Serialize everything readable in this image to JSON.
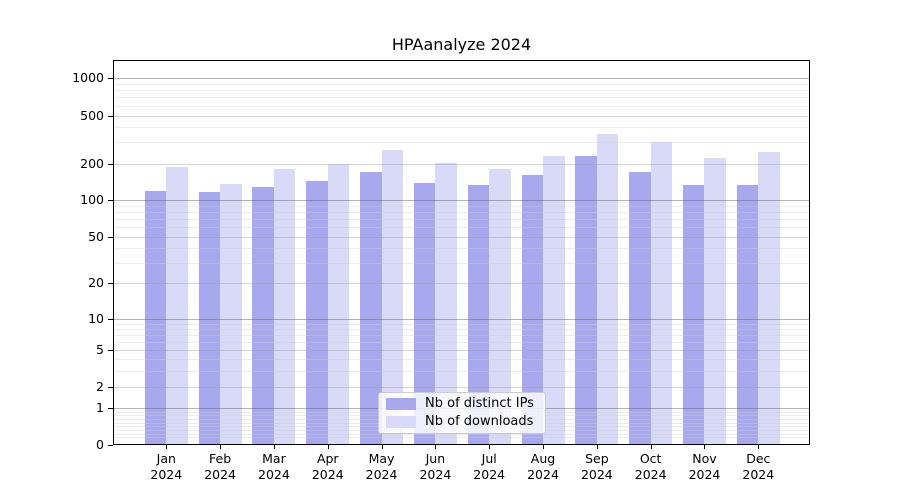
{
  "figure": {
    "background": "#ffffff"
  },
  "chart_data": {
    "type": "bar",
    "title": "HPAanalyze 2024",
    "xlabel": "",
    "ylabel": "",
    "yscale": "symlog",
    "y_ticks": [
      0,
      1,
      2,
      5,
      10,
      20,
      50,
      100,
      200,
      500,
      1000
    ],
    "ylim": [
      0,
      1400
    ],
    "grid": true,
    "gridlines_above_bars": true,
    "categories": [
      "Jan 2024",
      "Feb 2024",
      "Mar 2024",
      "Apr 2024",
      "May 2024",
      "Jun 2024",
      "Jul 2024",
      "Aug 2024",
      "Sep 2024",
      "Oct 2024",
      "Nov 2024",
      "Dec 2024"
    ],
    "series": [
      {
        "name": "Nb of distinct IPs",
        "color": "#a8a8ee",
        "values": [
          120,
          118,
          130,
          145,
          170,
          140,
          134,
          161,
          234,
          170,
          135,
          135
        ]
      },
      {
        "name": "Nb of downloads",
        "color": "#d9d9f8",
        "values": [
          188,
          137,
          181,
          198,
          259,
          203,
          182,
          234,
          350,
          302,
          225,
          252
        ]
      }
    ],
    "legend": {
      "position": "lower center"
    }
  }
}
